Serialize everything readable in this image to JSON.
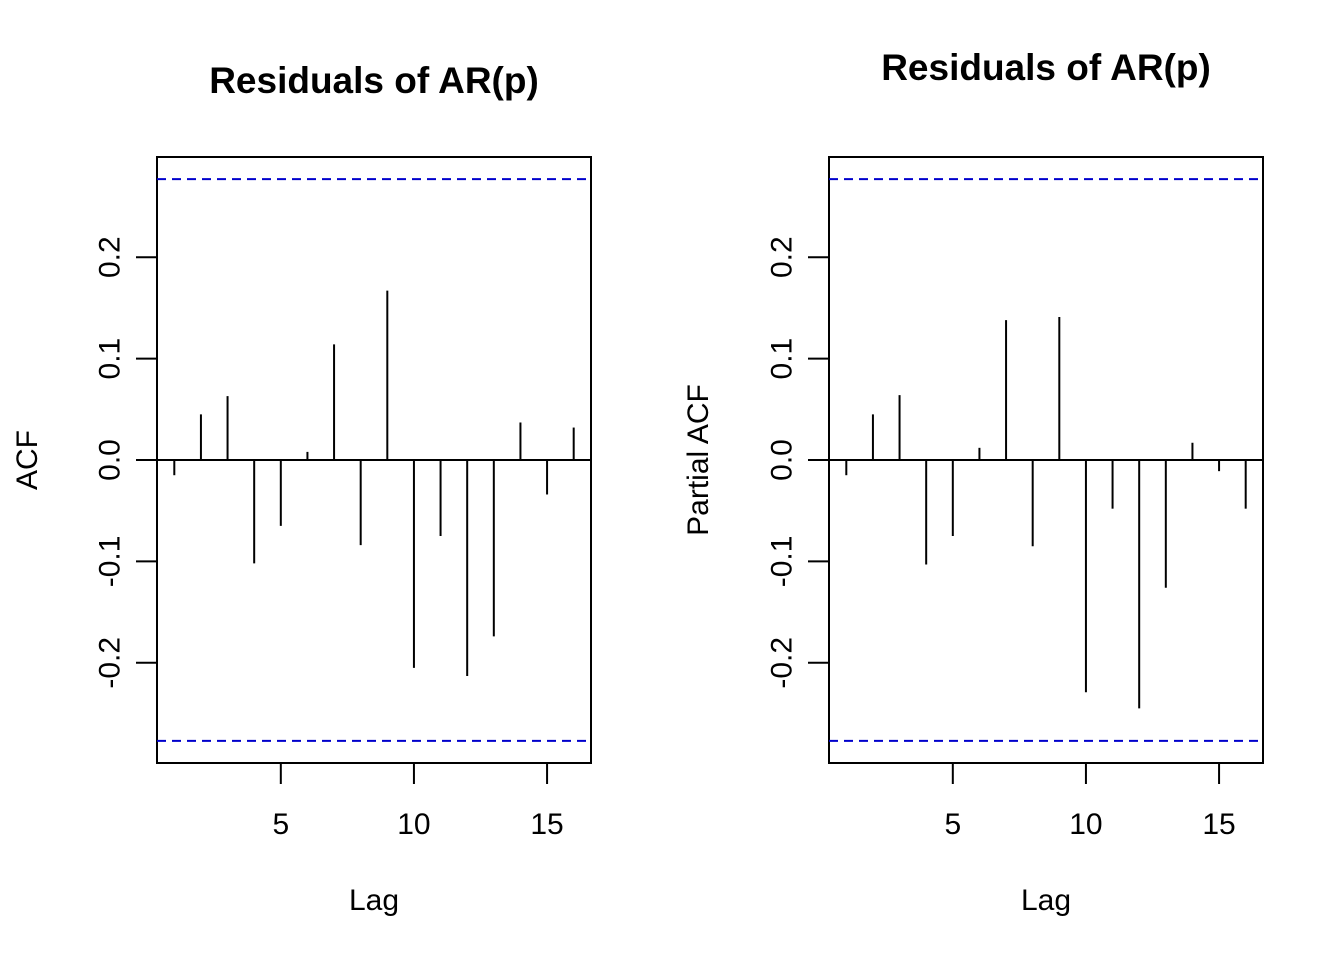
{
  "chart_data": [
    {
      "type": "bar",
      "title": "Residuals of AR(p)",
      "xlabel": "Lag",
      "ylabel": "ACF",
      "x_ticks": [
        5,
        10,
        15
      ],
      "y_ticks": [
        "-0.2",
        "-0.1",
        "0.0",
        "0.1",
        "0.2"
      ],
      "y_tick_values": [
        -0.2,
        -0.1,
        0.0,
        0.1,
        0.2
      ],
      "xlim": [
        0.35,
        16.65
      ],
      "ylim": [
        -0.3,
        0.3
      ],
      "confidence_bound": 0.277,
      "lags": [
        1,
        2,
        3,
        4,
        5,
        6,
        7,
        8,
        9,
        10,
        11,
        12,
        13,
        14,
        15,
        16
      ],
      "values": [
        -0.015,
        0.045,
        0.063,
        -0.102,
        -0.065,
        0.008,
        0.114,
        -0.084,
        0.167,
        -0.205,
        -0.075,
        -0.213,
        -0.174,
        0.037,
        -0.034,
        0.032
      ],
      "ci_color": "#0000cc",
      "bar_color": "#000000"
    },
    {
      "type": "bar",
      "title": "Residuals of AR(p)",
      "xlabel": "Lag",
      "ylabel": "Partial ACF",
      "x_ticks": [
        5,
        10,
        15
      ],
      "y_ticks": [
        "-0.2",
        "-0.1",
        "0.0",
        "0.1",
        "0.2"
      ],
      "y_tick_values": [
        -0.2,
        -0.1,
        0.0,
        0.1,
        0.2
      ],
      "xlim": [
        0.35,
        16.65
      ],
      "ylim": [
        -0.3,
        0.3
      ],
      "confidence_bound": 0.277,
      "lags": [
        1,
        2,
        3,
        4,
        5,
        6,
        7,
        8,
        9,
        10,
        11,
        12,
        13,
        14,
        15,
        16
      ],
      "values": [
        -0.015,
        0.045,
        0.064,
        -0.103,
        -0.075,
        0.012,
        0.138,
        -0.085,
        0.141,
        -0.229,
        -0.048,
        -0.245,
        -0.126,
        0.017,
        -0.011,
        -0.048
      ],
      "ci_color": "#0000cc",
      "bar_color": "#000000"
    }
  ]
}
